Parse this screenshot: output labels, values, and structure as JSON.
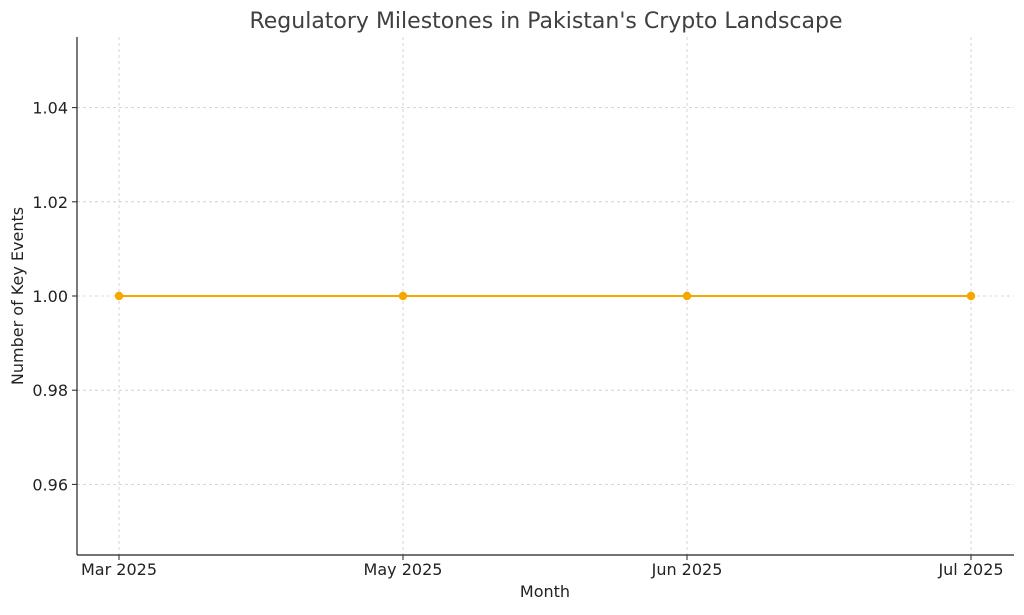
{
  "chart_data": {
    "type": "line",
    "title": "Regulatory Milestones in Pakistan's Crypto Landscape",
    "xlabel": "Month",
    "ylabel": "Number of Key Events",
    "categories": [
      "Mar 2025",
      "May 2025",
      "Jun 2025",
      "Jul 2025"
    ],
    "series": [
      {
        "values": [
          1,
          1,
          1,
          1
        ]
      }
    ],
    "ylim": [
      0.945,
      1.055
    ],
    "yticks": [
      0.96,
      0.98,
      1.0,
      1.02,
      1.04
    ],
    "ytick_labels": [
      "0.96",
      "0.98",
      "1.00",
      "1.02",
      "1.04"
    ],
    "grid": true,
    "colors": {
      "line": "#f5a800",
      "grid": "#cccccc",
      "axis": "#222222",
      "title": "#404040",
      "text": "#222222"
    }
  }
}
